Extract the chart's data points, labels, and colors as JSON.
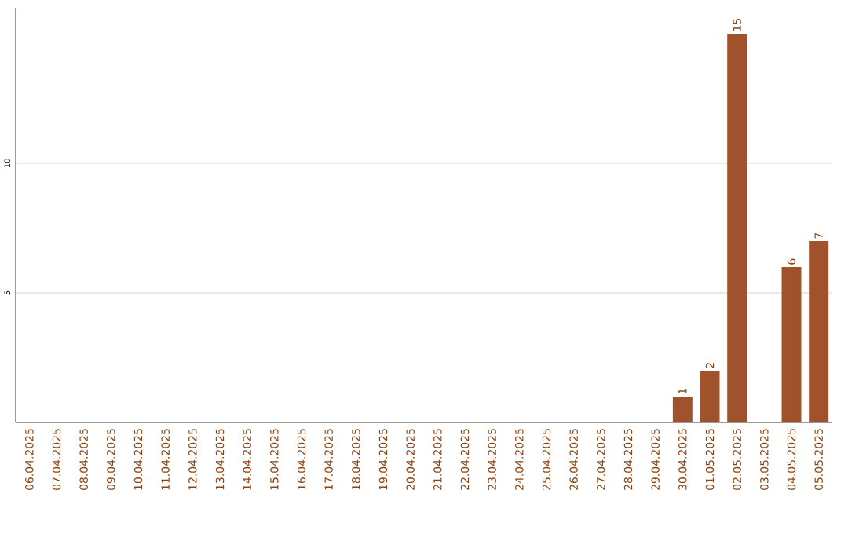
{
  "chart_data": {
    "type": "bar",
    "categories": [
      "06.04.2025",
      "07.04.2025",
      "08.04.2025",
      "09.04.2025",
      "10.04.2025",
      "11.04.2025",
      "12.04.2025",
      "13.04.2025",
      "14.04.2025",
      "15.04.2025",
      "16.04.2025",
      "17.04.2025",
      "18.04.2025",
      "19.04.2025",
      "20.04.2025",
      "21.04.2025",
      "22.04.2025",
      "23.04.2025",
      "24.04.2025",
      "25.04.2025",
      "26.04.2025",
      "27.04.2025",
      "28.04.2025",
      "29.04.2025",
      "30.04.2025",
      "01.05.2025",
      "02.05.2025",
      "03.05.2025",
      "04.05.2025",
      "05.05.2025"
    ],
    "values": [
      0,
      0,
      0,
      0,
      0,
      0,
      0,
      0,
      0,
      0,
      0,
      0,
      0,
      0,
      0,
      0,
      0,
      0,
      0,
      0,
      0,
      0,
      0,
      0,
      1,
      2,
      15,
      0,
      6,
      7
    ],
    "value_labels": [
      null,
      null,
      null,
      null,
      null,
      null,
      null,
      null,
      null,
      null,
      null,
      null,
      null,
      null,
      null,
      null,
      null,
      null,
      null,
      null,
      null,
      null,
      null,
      null,
      "1",
      "2",
      "15",
      null,
      "6",
      "7"
    ],
    "color": "#a0522d",
    "ylim": [
      0,
      16
    ],
    "yticks": [
      5,
      10
    ],
    "grid": "y"
  }
}
